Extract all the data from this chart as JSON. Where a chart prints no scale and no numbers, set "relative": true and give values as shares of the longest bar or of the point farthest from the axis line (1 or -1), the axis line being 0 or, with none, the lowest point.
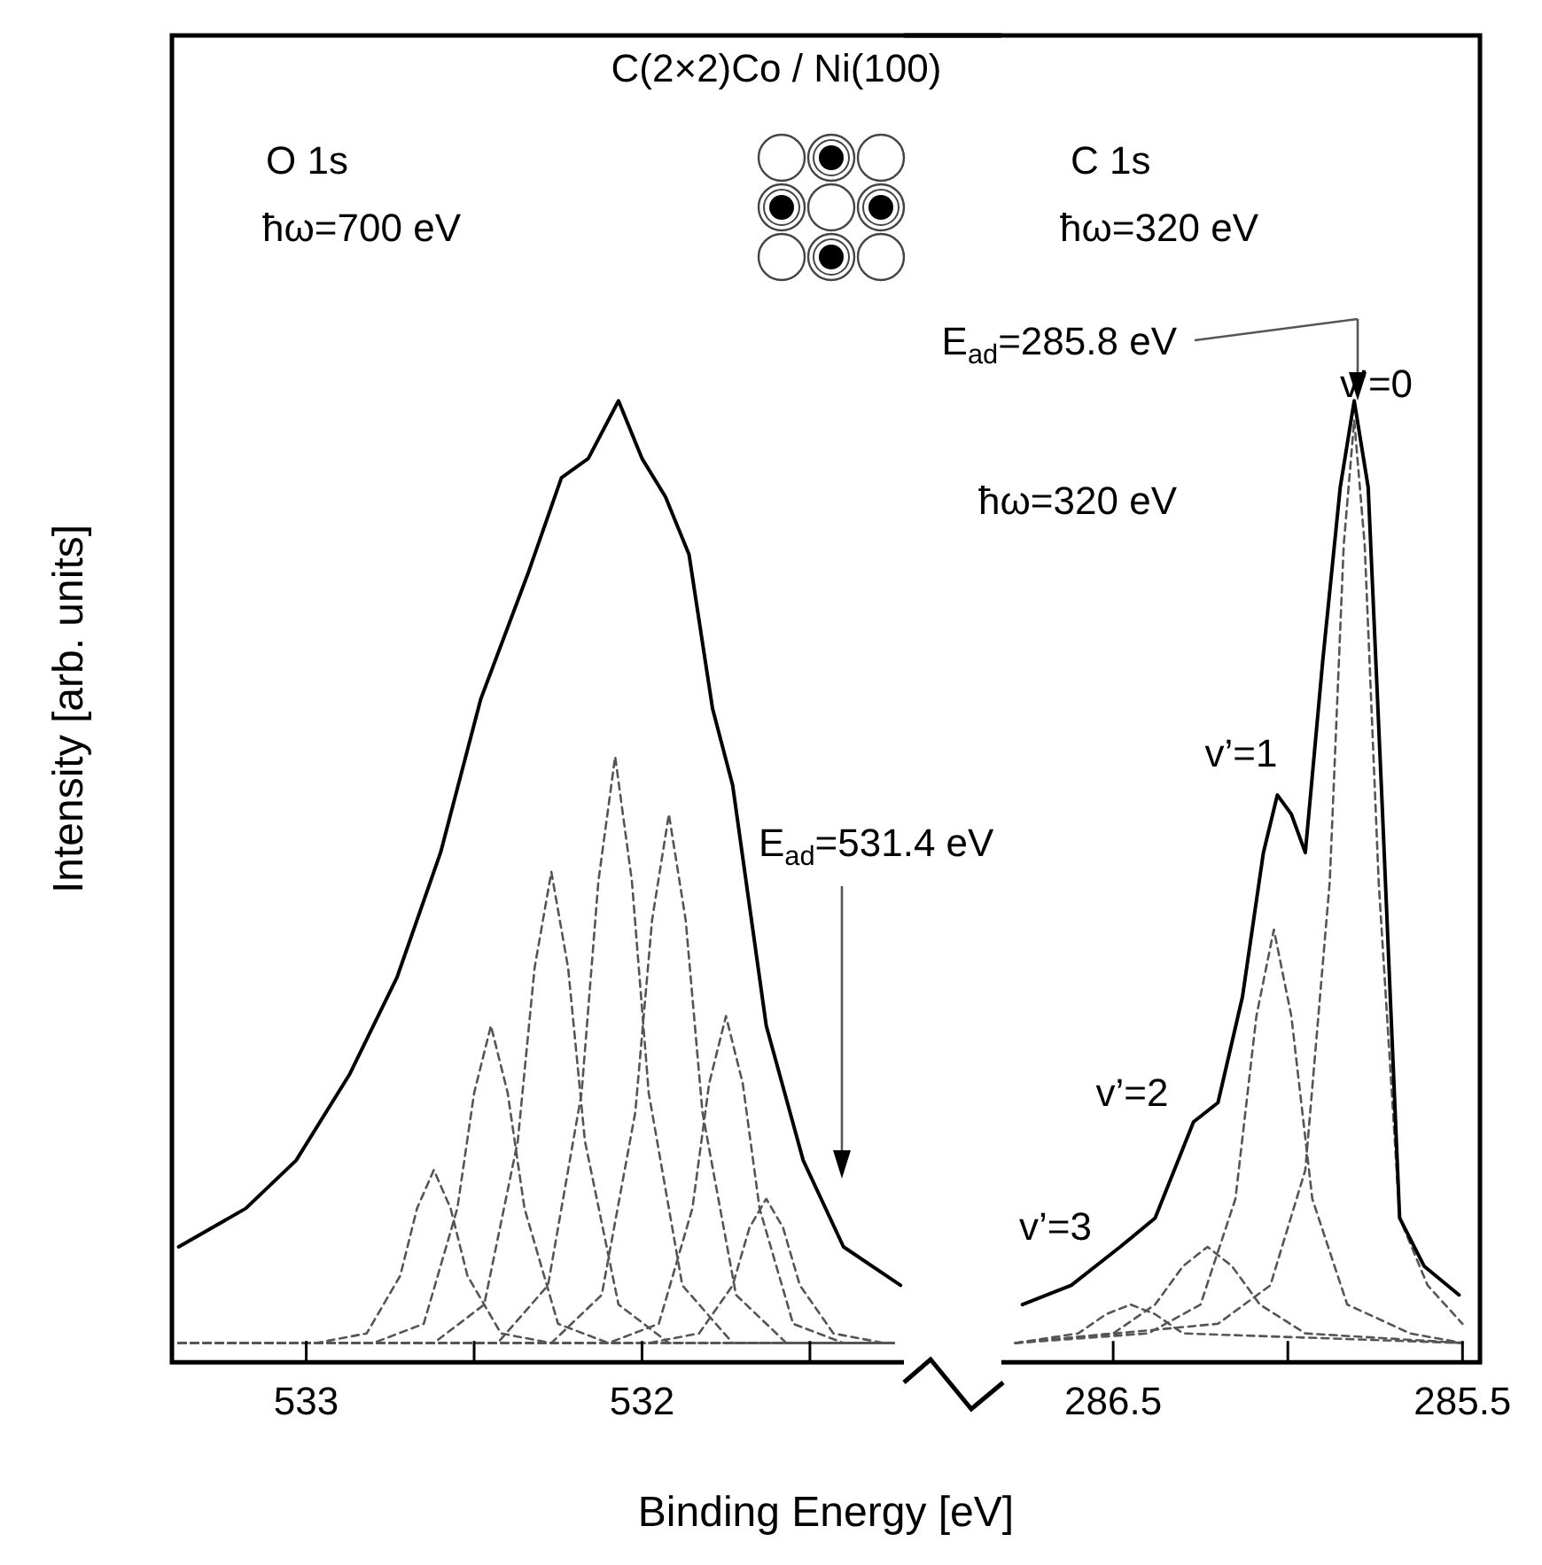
{
  "chart_data": [
    {
      "type": "line",
      "title": "C(2×2)Co / Ni(100)",
      "xlabel": "Binding Energy [eV]",
      "ylabel": "Intensity [arb. units]",
      "relative": true,
      "marker": "none",
      "xlim": [
        533.4,
        531.22
      ],
      "xticks": [
        533,
        {
          "value": 532.5,
          "label": null
        },
        532,
        {
          "value": 531.5,
          "label": null
        }
      ],
      "annotations": [
        "O 1s",
        "ħω=700 eV",
        "E$_{ad}$=531.4 eV"
      ],
      "series": [
        {
          "type": "line",
          "color": "#000000",
          "line_style": "solid",
          "x": [
            533.38,
            533.18,
            533.03,
            532.87,
            532.73,
            532.6,
            532.48,
            532.34,
            532.24,
            532.16,
            532.07,
            532.0,
            531.93,
            531.86,
            531.79,
            531.73,
            531.63,
            531.52,
            531.4,
            531.23
          ],
          "values": [
            0.12,
            0.16,
            0.21,
            0.3,
            0.4,
            0.53,
            0.69,
            0.82,
            0.92,
            0.94,
            1,
            0.94,
            0.9,
            0.84,
            0.68,
            0.6,
            0.35,
            0.21,
            0.12,
            0.08
          ]
        },
        {
          "type": "line",
          "color": "#555555",
          "line_style": "dashed",
          "x": [
            533.38,
            532.43,
            532.28,
            532.18,
            532.13,
            532.08,
            532.03,
            531.98,
            531.88,
            531.73,
            531.25
          ],
          "values": [
            0.02,
            0.02,
            0.08,
            0.28,
            0.5,
            0.63,
            0.5,
            0.28,
            0.08,
            0.02,
            0.02
          ]
        },
        {
          "type": "line",
          "color": "#555555",
          "line_style": "dashed",
          "x": [
            533.38,
            532.27,
            532.12,
            532.02,
            531.97,
            531.92,
            531.87,
            531.82,
            531.72,
            531.57,
            531.25
          ],
          "values": [
            0.02,
            0.02,
            0.07,
            0.26,
            0.46,
            0.57,
            0.46,
            0.26,
            0.07,
            0.02,
            0.02
          ]
        },
        {
          "type": "line",
          "color": "#555555",
          "line_style": "dashed",
          "x": [
            533.38,
            532.62,
            532.47,
            532.37,
            532.32,
            532.27,
            532.22,
            532.17,
            532.07,
            531.92,
            531.25
          ],
          "values": [
            0.02,
            0.02,
            0.06,
            0.23,
            0.41,
            0.51,
            0.41,
            0.23,
            0.06,
            0.02,
            0.02
          ]
        },
        {
          "type": "line",
          "color": "#555555",
          "line_style": "dashed",
          "x": [
            533.38,
            532.1,
            531.95,
            531.85,
            531.8,
            531.75,
            531.7,
            531.65,
            531.55,
            531.4,
            531.25
          ],
          "values": [
            0.02,
            0.02,
            0.04,
            0.16,
            0.29,
            0.36,
            0.29,
            0.16,
            0.04,
            0.02,
            0.02
          ]
        },
        {
          "type": "line",
          "color": "#555555",
          "line_style": "dashed",
          "x": [
            533.38,
            532.8,
            532.65,
            532.55,
            532.5,
            532.45,
            532.4,
            532.35,
            532.25,
            532.1,
            531.25
          ],
          "values": [
            0.02,
            0.02,
            0.04,
            0.16,
            0.28,
            0.35,
            0.28,
            0.16,
            0.04,
            0.02,
            0.02
          ]
        },
        {
          "type": "line",
          "color": "#555555",
          "line_style": "dashed",
          "x": [
            533.38,
            532.97,
            532.82,
            532.72,
            532.67,
            532.62,
            532.57,
            532.52,
            532.42,
            532.27,
            531.25
          ],
          "values": [
            0.02,
            0.02,
            0.03,
            0.09,
            0.16,
            0.2,
            0.16,
            0.09,
            0.03,
            0.02,
            0.02
          ]
        },
        {
          "type": "line",
          "color": "#555555",
          "line_style": "dashed",
          "x": [
            533.38,
            531.98,
            531.83,
            531.73,
            531.68,
            531.63,
            531.58,
            531.53,
            531.43,
            531.28
          ],
          "values": [
            0.02,
            0.02,
            0.03,
            0.08,
            0.14,
            0.17,
            0.14,
            0.08,
            0.03,
            0.02
          ]
        }
      ]
    },
    {
      "type": "line",
      "relative": true,
      "marker": "none",
      "xlim": [
        286.82,
        285.45
      ],
      "xticks": [
        286.5,
        {
          "value": 286,
          "label": null
        },
        285.5
      ],
      "annotations": [
        "C 1s",
        "ħω=320 eV",
        "ħω=320 eV",
        "E$_{ad}$=285.8 eV",
        {
          "text": "v’=0",
          "x": 285.81,
          "y": 1
        },
        {
          "text": "v’=1",
          "x": 286.03,
          "y": 0.59
        },
        {
          "text": "v’=2",
          "x": 286.2,
          "y": 0.27
        },
        {
          "text": "v’=3",
          "x": 286.48,
          "y": 0.12
        }
      ],
      "series": [
        {
          "type": "line",
          "color": "#000000",
          "line_style": "solid",
          "x": [
            286.76,
            286.62,
            286.48,
            286.38,
            286.27,
            286.2,
            286.13,
            286.07,
            286.03,
            285.99,
            285.95,
            285.9,
            285.85,
            285.81,
            285.77,
            285.73,
            285.68,
            285.61,
            285.51
          ],
          "values": [
            0.06,
            0.08,
            0.12,
            0.15,
            0.25,
            0.27,
            0.38,
            0.53,
            0.59,
            0.57,
            0.53,
            0.73,
            0.91,
            1,
            0.91,
            0.58,
            0.15,
            0.1,
            0.07
          ]
        },
        {
          "type": "line",
          "color": "#555555",
          "line_style": "dashed",
          "x": [
            286.78,
            286.2,
            286.05,
            285.95,
            285.88,
            285.84,
            285.81,
            285.78,
            285.74,
            285.68,
            285.6,
            285.5
          ],
          "values": [
            0.02,
            0.04,
            0.08,
            0.2,
            0.5,
            0.85,
            0.98,
            0.85,
            0.5,
            0.15,
            0.08,
            0.04
          ]
        },
        {
          "type": "line",
          "color": "#555555",
          "line_style": "dashed",
          "x": [
            286.78,
            286.4,
            286.25,
            286.15,
            286.09,
            286.04,
            285.99,
            285.93,
            285.83,
            285.65,
            285.5
          ],
          "values": [
            0.02,
            0.03,
            0.06,
            0.17,
            0.36,
            0.45,
            0.36,
            0.17,
            0.06,
            0.03,
            0.02
          ]
        },
        {
          "type": "line",
          "color": "#555555",
          "line_style": "dashed",
          "x": [
            286.78,
            286.5,
            286.38,
            286.3,
            286.23,
            286.16,
            286.08,
            285.95,
            285.5
          ],
          "values": [
            0.02,
            0.03,
            0.06,
            0.1,
            0.12,
            0.1,
            0.06,
            0.03,
            0.02
          ]
        },
        {
          "type": "line",
          "color": "#555555",
          "line_style": "dashed",
          "x": [
            286.78,
            286.6,
            286.52,
            286.45,
            286.38,
            286.3,
            285.5
          ],
          "values": [
            0.02,
            0.03,
            0.05,
            0.06,
            0.05,
            0.03,
            0.02
          ]
        }
      ]
    }
  ]
}
